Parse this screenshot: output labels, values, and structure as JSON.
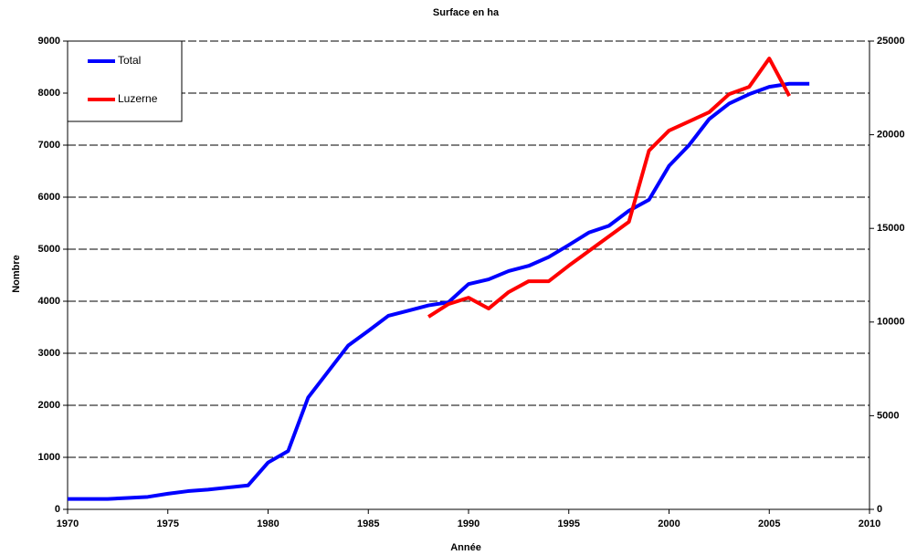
{
  "chart_data": {
    "type": "line",
    "title": "Surface en ha",
    "xlabel": "Année",
    "ylabel": "Nombre",
    "x": [
      1970,
      1971,
      1972,
      1973,
      1974,
      1975,
      1976,
      1977,
      1978,
      1979,
      1980,
      1981,
      1982,
      1983,
      1984,
      1985,
      1986,
      1987,
      1988,
      1989,
      1990,
      1991,
      1992,
      1993,
      1994,
      1995,
      1996,
      1997,
      1998,
      1999,
      2000,
      2001,
      2002,
      2003,
      2004,
      2005,
      2006,
      2007
    ],
    "series": [
      {
        "name": "Total",
        "color": "#0000ff",
        "values": [
          200,
          200,
          200,
          220,
          240,
          300,
          350,
          380,
          420,
          460,
          900,
          1120,
          2150,
          2650,
          3150,
          3430,
          3720,
          3820,
          3920,
          3980,
          4330,
          4420,
          4580,
          4680,
          4850,
          5080,
          5320,
          5450,
          5740,
          5950,
          6600,
          7000,
          7500,
          7800,
          7980,
          8120,
          8180,
          8180
        ]
      },
      {
        "name": "Luzerne",
        "color": "#ff0000",
        "axis": "y2",
        "values": [
          null,
          null,
          null,
          null,
          null,
          null,
          null,
          null,
          null,
          null,
          null,
          null,
          null,
          null,
          null,
          null,
          null,
          null,
          10280,
          10960,
          11300,
          10720,
          11600,
          12180,
          12180,
          13010,
          13790,
          14570,
          15350,
          19150,
          20220,
          20710,
          21200,
          22170,
          22560,
          24070,
          22070,
          null
        ]
      }
    ],
    "xlim": [
      1970,
      2010
    ],
    "xticks": [
      1970,
      1975,
      1980,
      1985,
      1990,
      1995,
      2000,
      2005,
      2010
    ],
    "ylim": [
      0,
      9000
    ],
    "yticks": [
      0,
      1000,
      2000,
      3000,
      4000,
      5000,
      6000,
      7000,
      8000,
      9000
    ],
    "y2lim": [
      0,
      25000
    ],
    "y2ticks": [
      0,
      5000,
      10000,
      15000,
      20000,
      25000
    ],
    "grid": true,
    "legend": "top-left"
  }
}
